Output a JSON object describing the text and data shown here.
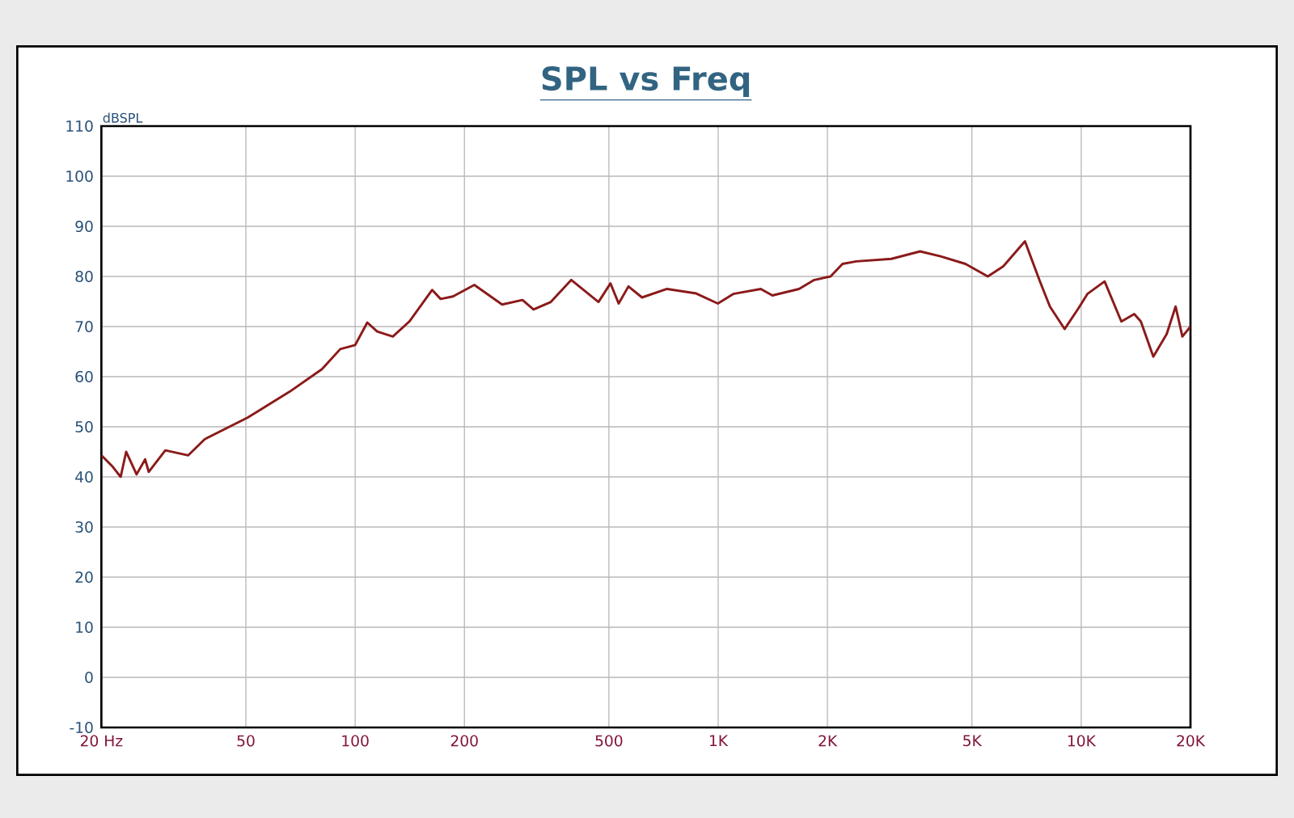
{
  "chart_data": {
    "type": "line",
    "title": "SPL vs Freq",
    "ylabel": "dBSPL",
    "log": "x",
    "grid": true,
    "marker": "none",
    "line_style": "solid",
    "xlim": [
      20,
      20000
    ],
    "ylim": [
      -10,
      110
    ],
    "xticks": [
      {
        "value": 20,
        "label": "20 Hz"
      },
      50,
      100,
      200,
      500,
      {
        "value": 1000,
        "label": "1K"
      },
      {
        "value": 2000,
        "label": "2K"
      },
      {
        "value": 5000,
        "label": "5K"
      },
      {
        "value": 10000,
        "label": "10K"
      },
      {
        "value": 20000,
        "label": "20K"
      }
    ],
    "yticks": [
      -10,
      0,
      10,
      20,
      30,
      40,
      50,
      60,
      70,
      80,
      90,
      100,
      110
    ],
    "series": [
      {
        "color": "#8b1a1a",
        "x": [
          20,
          21.5,
          22.6,
          23.4,
          25,
          26.4,
          27,
          30,
          34.7,
          38.5,
          50.5,
          66,
          81,
          91,
          100,
          108,
          115,
          127,
          141,
          163,
          172,
          186,
          213,
          254,
          289,
          310,
          346,
          394,
          468,
          505,
          532,
          566,
          617,
          723,
          870,
          998,
          1100,
          1310,
          1410,
          1670,
          1840,
          2040,
          2200,
          2400,
          3000,
          3600,
          4100,
          4800,
          5530,
          6100,
          7000,
          7700,
          8200,
          9000,
          9800,
          10400,
          11600,
          12900,
          14000,
          14600,
          15800,
          17200,
          18200,
          19000,
          20000
        ],
        "values": [
          44.3,
          42,
          40,
          45,
          40.5,
          43.5,
          41,
          45.3,
          44.3,
          47.5,
          51.8,
          57,
          61.5,
          65.5,
          66.3,
          70.8,
          69,
          68,
          71,
          77.3,
          75.5,
          76,
          78.3,
          74.4,
          75.3,
          73.4,
          74.9,
          79.3,
          74.9,
          78.6,
          74.6,
          78,
          75.8,
          77.5,
          76.6,
          74.6,
          76.5,
          77.5,
          76.2,
          77.5,
          79.3,
          80,
          82.5,
          83,
          83.5,
          85,
          84,
          82.5,
          80,
          82,
          87,
          79,
          74,
          69.5,
          73.5,
          76.5,
          79,
          71,
          72.5,
          71,
          64,
          68.5,
          74,
          68,
          70
        ]
      }
    ]
  }
}
